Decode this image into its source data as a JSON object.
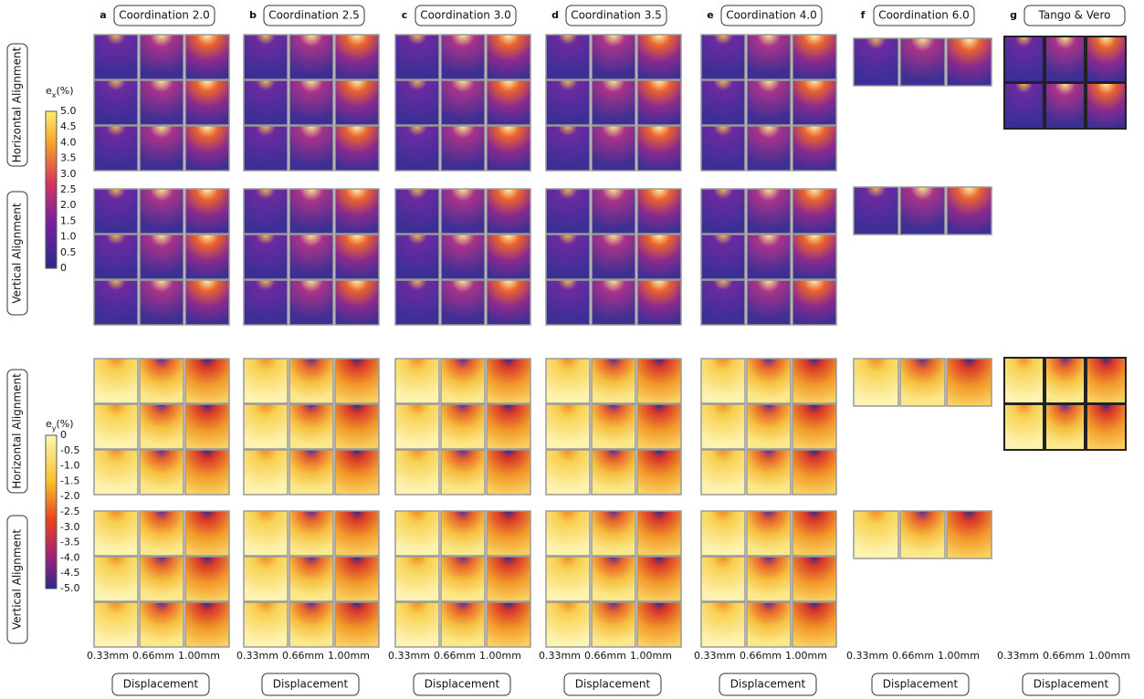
{
  "columns": [
    {
      "letter": "a",
      "title": "Coordination 2.0",
      "x_labels": [
        "0.33mm",
        "0.66mm",
        "1.00mm"
      ],
      "footer": "Displacement"
    },
    {
      "letter": "b",
      "title": "Coordination 2.5",
      "x_labels": [
        "0.33mm",
        "0.66mm",
        "1.00mm"
      ],
      "footer": "Displacement"
    },
    {
      "letter": "c",
      "title": "Coordination 3.0",
      "x_labels": [
        "0.33mm",
        "0.66mm",
        "1.00mm"
      ],
      "footer": "Displacement"
    },
    {
      "letter": "d",
      "title": "Coordination 3.5",
      "x_labels": [
        "0.33mm",
        "0.66mm",
        "1.00mm"
      ],
      "footer": "Displacement"
    },
    {
      "letter": "e",
      "title": "Coordination 4.0",
      "x_labels": [
        "0.33mm",
        "0.66mm",
        "1.00mm"
      ],
      "footer": "Displacement"
    },
    {
      "letter": "f",
      "title": "Coordination 6.0",
      "x_labels": [
        "0.33mm",
        "0.66mm",
        "1.00mm"
      ],
      "footer": "Displacement"
    },
    {
      "letter": "g",
      "title": "Tango & Vero",
      "x_labels": [
        "0.33mm",
        "0.66mm",
        "1.00mm"
      ],
      "footer": "Displacement"
    }
  ],
  "row_labels": [
    "Horizontal Alignment",
    "Vertical Alignment",
    "Horizontal Alignment",
    "Vertical Alignment"
  ],
  "colorbars": [
    {
      "symbol": "e",
      "subscript": "x",
      "unit": "(%)",
      "ticks": [
        "5.0",
        "4.5",
        "4.0",
        "3.5",
        "3.0",
        "2.5",
        "2.0",
        "1.5",
        "1.0",
        "0.5",
        "0"
      ]
    },
    {
      "symbol": "e",
      "subscript": "y",
      "unit": "(%)",
      "ticks": [
        "0",
        "-0.5",
        "-1.0",
        "-1.5",
        "-2.0",
        "-2.5",
        "-3.0",
        "-3.5",
        "-4.0",
        "-4.5",
        "-5.0"
      ]
    }
  ]
}
